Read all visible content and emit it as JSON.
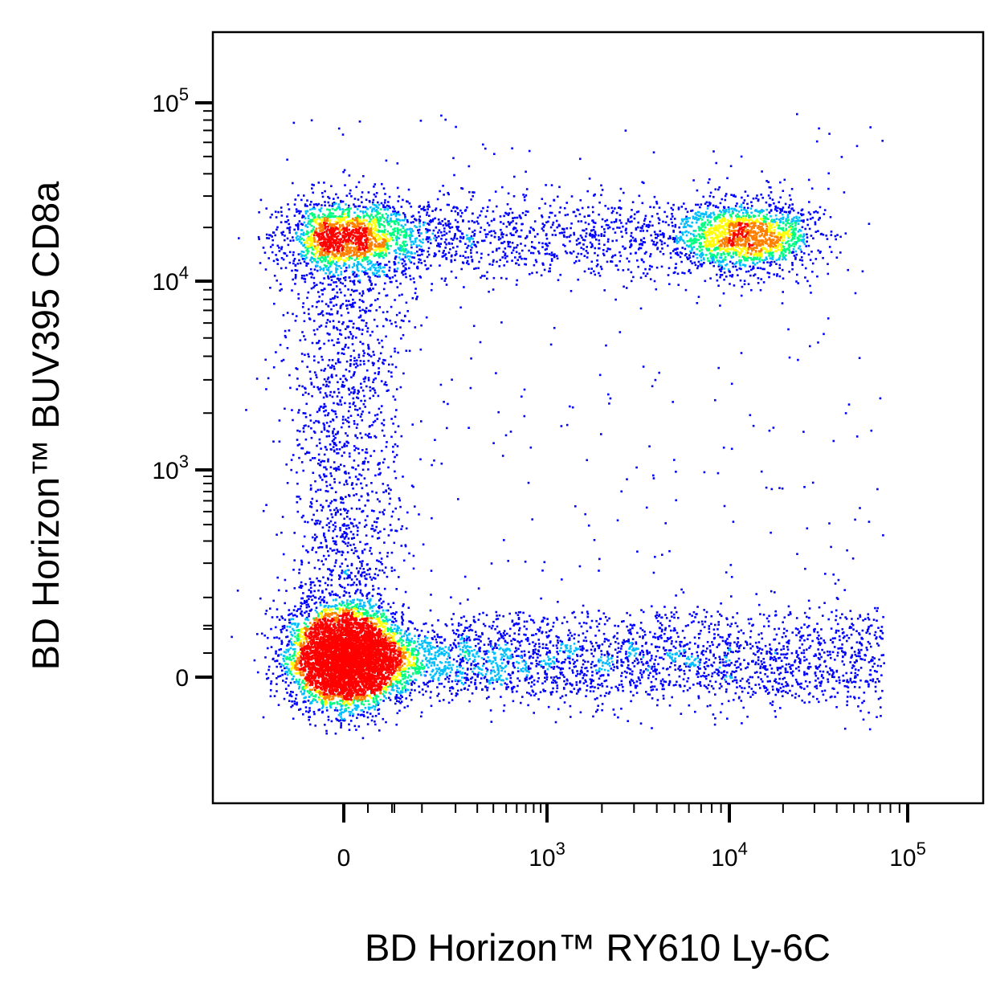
{
  "chart_data": {
    "type": "scatter",
    "subtype": "flow-cytometry-density-dot-plot",
    "xlabel": "BD Horizon™ RY610 Ly-6C",
    "ylabel": "BD Horizon™ BUV395 CD8a",
    "x_scale": "biexponential",
    "y_scale": "biexponential",
    "x_ticks": [
      {
        "value": 0,
        "base": "0",
        "exp": ""
      },
      {
        "value": 1000,
        "base": "10",
        "exp": "3"
      },
      {
        "value": 10000,
        "base": "10",
        "exp": "4"
      },
      {
        "value": 100000,
        "base": "10",
        "exp": "5"
      }
    ],
    "y_ticks": [
      {
        "value": 0,
        "base": "0",
        "exp": ""
      },
      {
        "value": 1000,
        "base": "10",
        "exp": "3"
      },
      {
        "value": 10000,
        "base": "10",
        "exp": "4"
      },
      {
        "value": 100000,
        "base": "10",
        "exp": "5"
      }
    ],
    "grid": false,
    "legend": "none",
    "color_scale": [
      "#0000ff",
      "#00bfff",
      "#00ff80",
      "#ffff00",
      "#ff8000",
      "#ff0000"
    ],
    "populations": [
      {
        "x_center": 0,
        "y_center": 0,
        "density": "very high"
      },
      {
        "x_center": 0,
        "y_center": 18000,
        "density": "medium"
      },
      {
        "x_center": 12000,
        "y_center": 18000,
        "density": "medium"
      },
      {
        "x_center": 3000,
        "y_center": 50,
        "density": "low"
      }
    ]
  }
}
